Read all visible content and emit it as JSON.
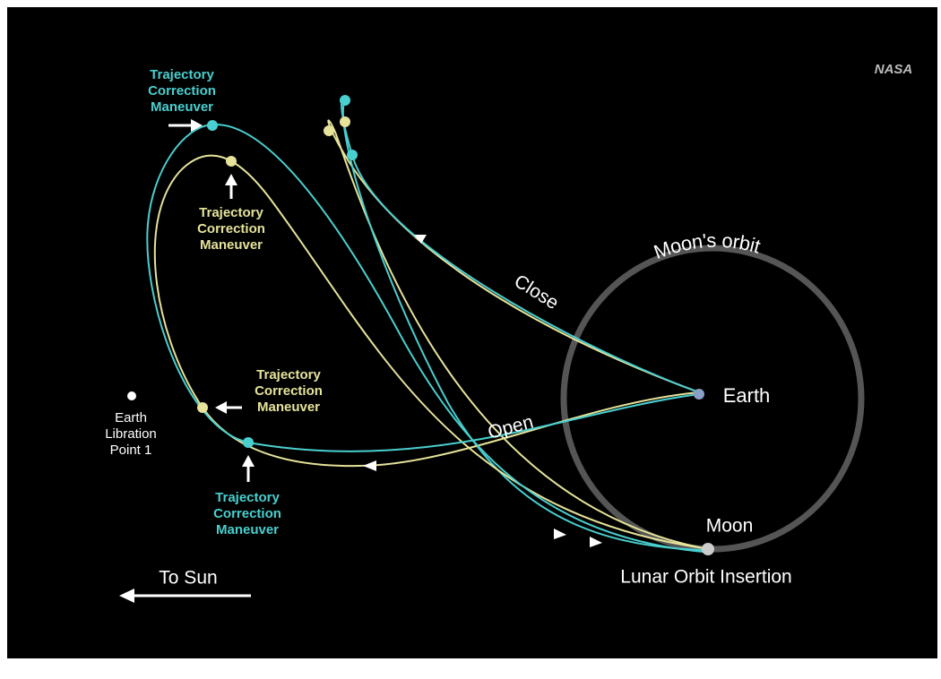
{
  "logo": "NASA",
  "orbit_label": "Moon's orbit",
  "trajectories": {
    "close": "Close",
    "open": "Open"
  },
  "bodies": {
    "earth": "Earth",
    "moon": "Moon"
  },
  "insertion": "Lunar Orbit Insertion",
  "libration_point": [
    "Earth",
    "Libration",
    "Point 1"
  ],
  "direction": "To Sun",
  "maneuvers": [
    [
      "Trajectory",
      "Correction",
      "Maneuver"
    ],
    [
      "Trajectory",
      "Correction",
      "Maneuver"
    ],
    [
      "Trajectory",
      "Correction",
      "Maneuver"
    ],
    [
      "Trajectory",
      "Correction",
      "Maneuver"
    ]
  ]
}
